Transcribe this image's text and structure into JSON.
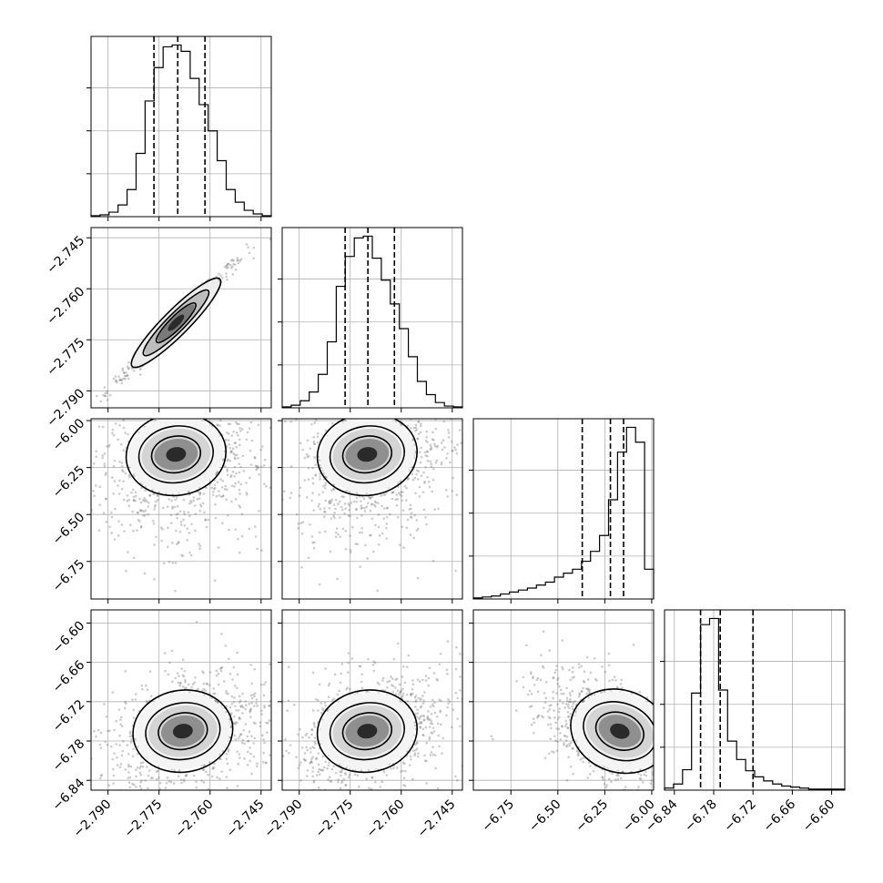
{
  "chart_data": {
    "type": "corner",
    "grid": true,
    "parameters": [
      {
        "range": [
          -2.795,
          -2.742
        ],
        "ticks": [
          -2.79,
          -2.775,
          -2.76,
          -2.745
        ],
        "tick_labels": [
          "−2.790",
          "−2.775",
          "−2.760",
          "−2.745"
        ]
      },
      {
        "range": [
          -2.795,
          -2.742
        ],
        "ticks": [
          -2.79,
          -2.775,
          -2.76,
          -2.745
        ],
        "tick_labels": [
          "−2.790",
          "−2.775",
          "−2.760",
          "−2.745"
        ]
      },
      {
        "range": [
          -6.95,
          -5.99
        ],
        "ticks": [
          -6.75,
          -6.5,
          -6.25,
          -6.0
        ],
        "tick_labels": [
          "−6.75",
          "−6.50",
          "−6.25",
          "−6.00"
        ]
      },
      {
        "range": [
          -6.855,
          -6.58
        ],
        "ticks": [
          -6.84,
          -6.78,
          -6.72,
          -6.66,
          -6.6
        ],
        "tick_labels": [
          "−6.84",
          "−6.78",
          "−6.72",
          "−6.66",
          "−6.60"
        ]
      }
    ],
    "histograms": [
      {
        "edges_range": [
          -2.795,
          -2.742
        ],
        "counts": [
          1,
          2,
          5,
          13,
          30,
          70,
          128,
          165,
          188,
          190,
          183,
          153,
          124,
          95,
          62,
          30,
          16,
          7,
          3,
          1
        ],
        "quantiles": [
          -2.7765,
          -2.7695,
          -2.7615
        ]
      },
      {
        "edges_range": [
          -2.795,
          -2.742
        ],
        "counts": [
          1,
          3,
          8,
          18,
          38,
          75,
          138,
          172,
          193,
          195,
          170,
          145,
          118,
          90,
          58,
          30,
          15,
          6,
          2,
          1
        ],
        "quantiles": [
          -2.7765,
          -2.7698,
          -2.762
        ]
      },
      {
        "edges_range": [
          -6.95,
          -5.99
        ],
        "counts": [
          1,
          2,
          3,
          5,
          7,
          9,
          11,
          14,
          17,
          22,
          26,
          30,
          38,
          48,
          64,
          100,
          148,
          173,
          158,
          30
        ],
        "quantiles": [
          -6.37,
          -6.22,
          -6.15
        ]
      },
      {
        "edges_range": [
          -6.855,
          -6.58
        ],
        "counts": [
          2,
          6,
          20,
          95,
          162,
          168,
          98,
          48,
          30,
          19,
          13,
          9,
          6,
          4,
          3,
          2,
          1,
          1,
          1,
          1
        ],
        "quantiles": [
          -6.8,
          -6.77,
          -6.72
        ]
      }
    ],
    "pairs": [
      {
        "row": 1,
        "col": 0,
        "correlation": 0.99,
        "peak": [
          -2.77,
          -2.77
        ]
      },
      {
        "row": 2,
        "col": 0,
        "correlation": 0.25,
        "peak": [
          -2.77,
          -6.18
        ]
      },
      {
        "row": 2,
        "col": 1,
        "correlation": 0.25,
        "peak": [
          -2.77,
          -6.18
        ]
      },
      {
        "row": 3,
        "col": 0,
        "correlation": 0.3,
        "peak": [
          -2.768,
          -6.765
        ]
      },
      {
        "row": 3,
        "col": 1,
        "correlation": 0.3,
        "peak": [
          -2.77,
          -6.765
        ]
      },
      {
        "row": 3,
        "col": 2,
        "correlation": -0.55,
        "peak": [
          -6.17,
          -6.765
        ]
      }
    ]
  }
}
